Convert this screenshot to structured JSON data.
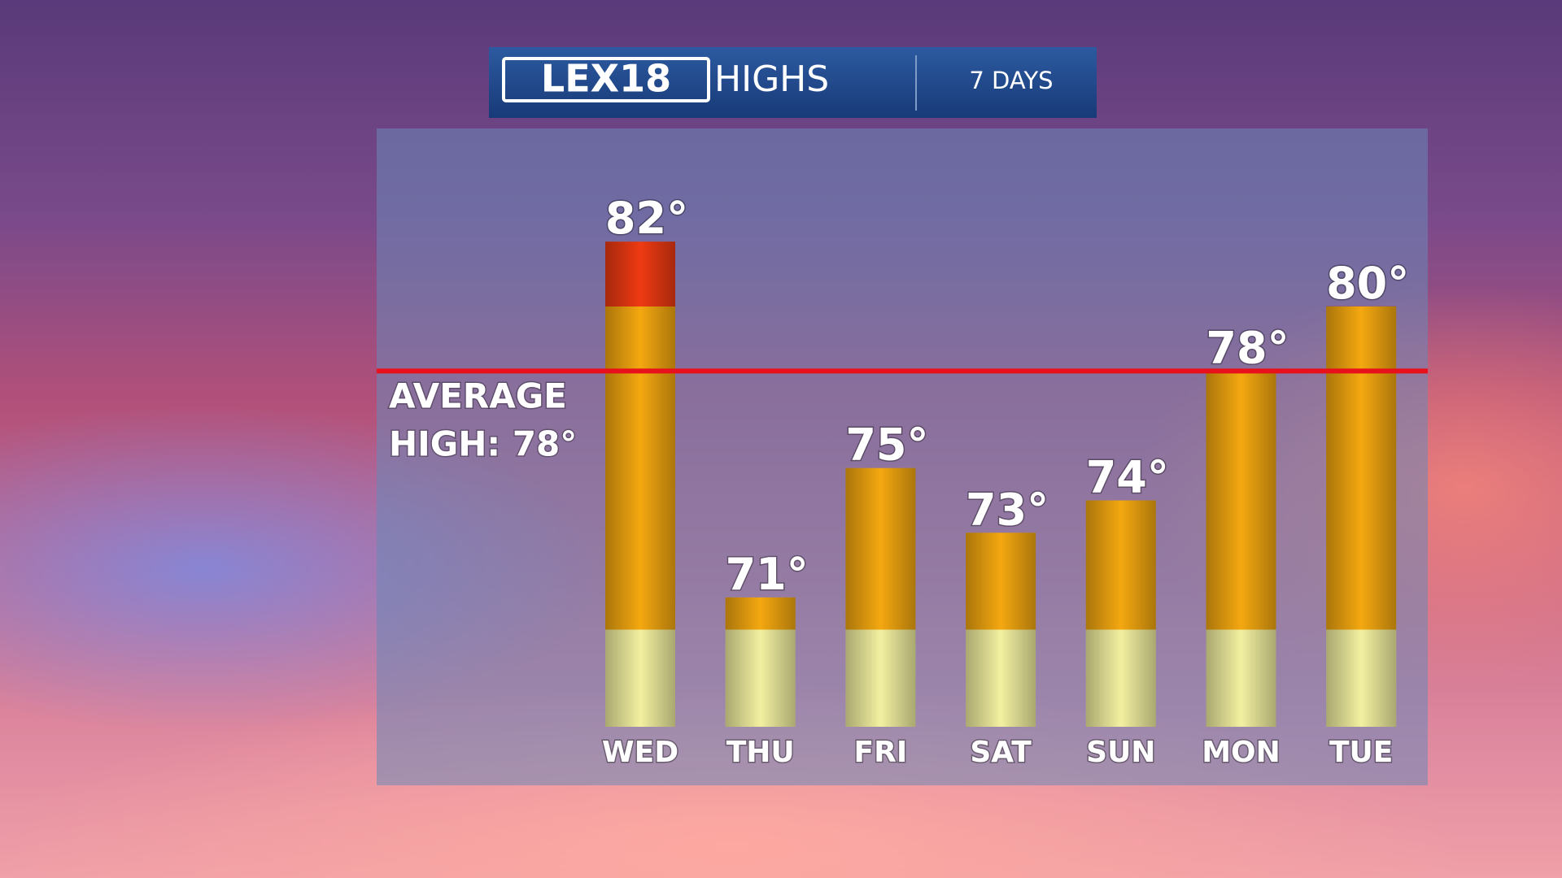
{
  "chart_data": {
    "type": "bar",
    "logo": "LEX18",
    "title": "HIGHS",
    "subtitle": "7 DAYS",
    "categories": [
      "WED",
      "THU",
      "FRI",
      "SAT",
      "SUN",
      "MON",
      "TUE"
    ],
    "values": [
      82,
      71,
      75,
      73,
      74,
      78,
      80
    ],
    "value_labels": [
      "82°",
      "71°",
      "75°",
      "73°",
      "74°",
      "78°",
      "80°"
    ],
    "ylim": [
      67,
      85.5
    ],
    "color_bands": [
      {
        "from": 67,
        "to": 70,
        "color": "#f2f0a0"
      },
      {
        "from": 70,
        "to": 80,
        "color": "#f4a810"
      },
      {
        "from": 80,
        "to": 85.5,
        "color": "#ee3a12"
      }
    ],
    "average": {
      "value": 78,
      "color": "#e8101a",
      "label": [
        "AVERAGE",
        "HIGH: 78°"
      ]
    }
  }
}
